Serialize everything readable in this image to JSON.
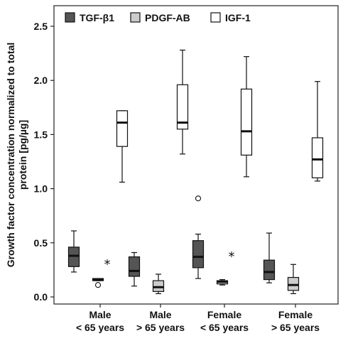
{
  "chart_data": {
    "type": "boxplot",
    "title": "",
    "xlabel": "",
    "ylabel_lines": [
      "Growth factor concentration normalized to total",
      "protein [pg/µg]"
    ],
    "ylim": [
      0,
      2.5
    ],
    "yticks": [
      "0.0",
      "0.5",
      "1.0",
      "1.5",
      "2.0",
      "2.5"
    ],
    "grid": false,
    "legend_position": "top-left",
    "groups": [
      {
        "line1": "Male",
        "line2": "< 65 years"
      },
      {
        "line1": "Male",
        "line2": "> 65 years"
      },
      {
        "line1": "Female",
        "line2": "< 65 years"
      },
      {
        "line1": "Female",
        "line2": "> 65 years"
      }
    ],
    "series": [
      {
        "name": "TGF-β1",
        "color": "#555555",
        "boxes": [
          {
            "whisker_low": 0.23,
            "q1": 0.28,
            "median": 0.38,
            "q3": 0.46,
            "whisker_high": 0.61,
            "outliers": [],
            "extremes": []
          },
          {
            "whisker_low": 0.1,
            "q1": 0.19,
            "median": 0.24,
            "q3": 0.37,
            "whisker_high": 0.41,
            "outliers": [],
            "extremes": []
          },
          {
            "whisker_low": 0.17,
            "q1": 0.27,
            "median": 0.37,
            "q3": 0.52,
            "whisker_high": 0.58,
            "outliers": [
              0.91
            ],
            "extremes": []
          },
          {
            "whisker_low": 0.13,
            "q1": 0.16,
            "median": 0.23,
            "q3": 0.34,
            "whisker_high": 0.59,
            "outliers": [],
            "extremes": []
          }
        ]
      },
      {
        "name": "PDGF-AB",
        "color": "#cccccc",
        "boxes": [
          {
            "whisker_low": 0.15,
            "q1": 0.15,
            "median": 0.16,
            "q3": 0.17,
            "whisker_high": 0.17,
            "outliers": [
              0.11
            ],
            "extremes": [
              0.31
            ]
          },
          {
            "whisker_low": 0.03,
            "q1": 0.05,
            "median": 0.09,
            "q3": 0.15,
            "whisker_high": 0.21,
            "outliers": [],
            "extremes": []
          },
          {
            "whisker_low": 0.11,
            "q1": 0.12,
            "median": 0.14,
            "q3": 0.15,
            "whisker_high": 0.16,
            "outliers": [],
            "extremes": [
              0.38
            ]
          },
          {
            "whisker_low": 0.03,
            "q1": 0.06,
            "median": 0.11,
            "q3": 0.18,
            "whisker_high": 0.3,
            "outliers": [],
            "extremes": []
          }
        ]
      },
      {
        "name": "IGF-1",
        "color": "#ffffff",
        "boxes": [
          {
            "whisker_low": 1.06,
            "q1": 1.39,
            "median": 1.61,
            "q3": 1.72,
            "whisker_high": 1.72,
            "outliers": [],
            "extremes": []
          },
          {
            "whisker_low": 1.32,
            "q1": 1.55,
            "median": 1.61,
            "q3": 1.96,
            "whisker_high": 2.28,
            "outliers": [],
            "extremes": []
          },
          {
            "whisker_low": 1.11,
            "q1": 1.31,
            "median": 1.53,
            "q3": 1.92,
            "whisker_high": 2.22,
            "outliers": [],
            "extremes": []
          },
          {
            "whisker_low": 1.07,
            "q1": 1.1,
            "median": 1.27,
            "q3": 1.47,
            "whisker_high": 1.99,
            "outliers": [],
            "extremes": []
          }
        ]
      }
    ]
  }
}
